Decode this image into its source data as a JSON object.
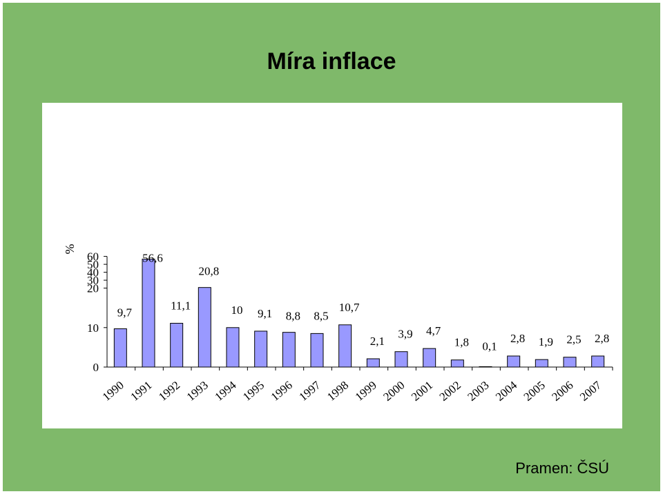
{
  "chart_data": {
    "type": "bar",
    "title": "Míra inflace",
    "ylabel": "%",
    "xlabel": "",
    "categories": [
      "1990",
      "1991",
      "1992",
      "1993",
      "1994",
      "1995",
      "1996",
      "1997",
      "1998",
      "1999",
      "2000",
      "2001",
      "2002",
      "2003",
      "2004",
      "2005",
      "2006",
      "2007"
    ],
    "values": [
      9.7,
      56.6,
      11.1,
      20.8,
      10,
      9.1,
      8.8,
      8.5,
      10.7,
      2.1,
      3.9,
      4.7,
      1.8,
      0.1,
      2.8,
      1.9,
      2.5,
      2.8
    ],
    "value_labels": [
      "9,7",
      "56,6",
      "11,1",
      "20,8",
      "10",
      "9,1",
      "8,8",
      "8,5",
      "10,7",
      "2,1",
      "3,9",
      "4,7",
      "1,8",
      "0,1",
      "2,8",
      "1,9",
      "2,5",
      "2,8"
    ],
    "y_ticks": [
      "0",
      "10",
      "20",
      "30",
      "40",
      "50",
      "60"
    ],
    "y_tick_values": [
      0,
      10,
      20,
      30,
      40,
      50,
      60
    ],
    "axis_break": {
      "linear_below": 20,
      "compressed_above": 20
    },
    "ylim": [
      0,
      60
    ],
    "grid": false,
    "bar_color": "#9999ff",
    "bar_edge_color": "#000000"
  },
  "source": "Pramen: ČSÚ"
}
